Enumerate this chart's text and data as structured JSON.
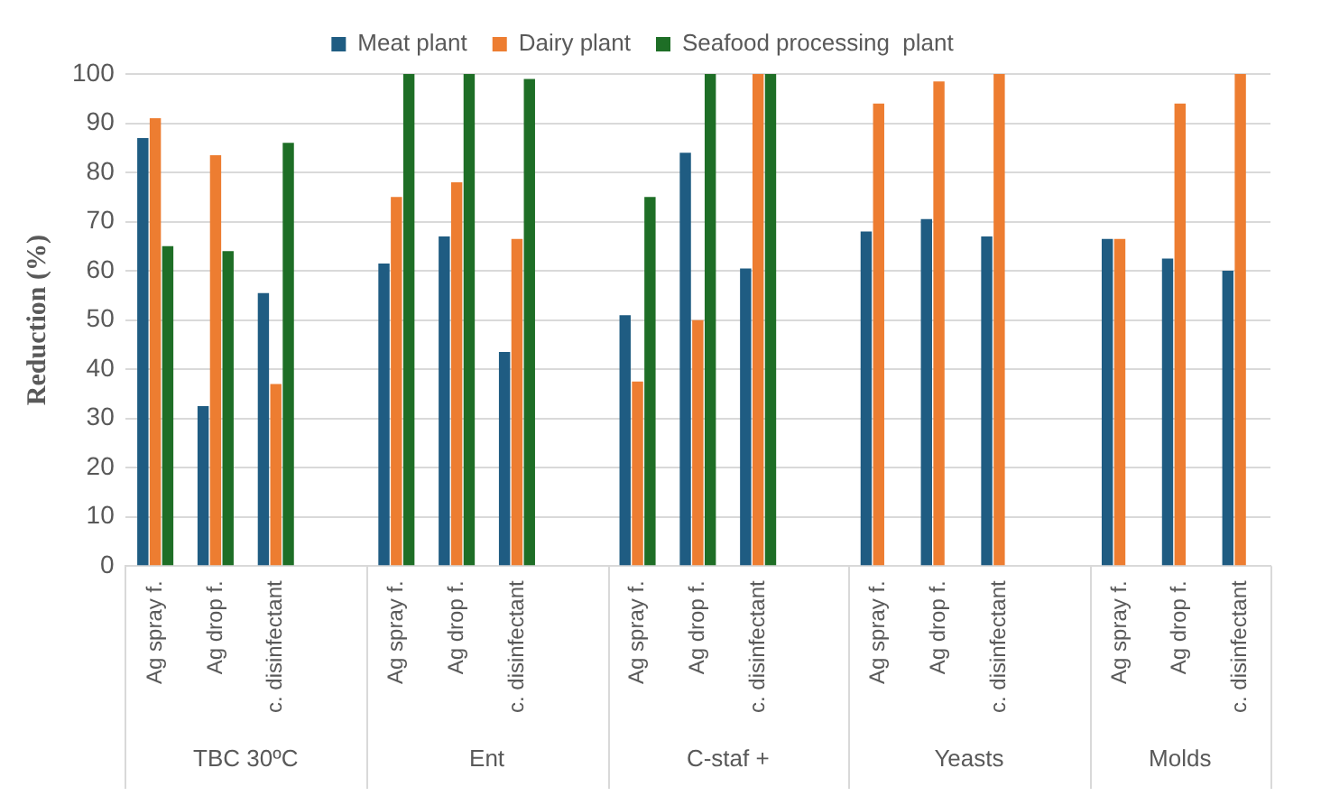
{
  "chart_data": {
    "type": "bar",
    "ylabel": "Reduction (%)",
    "categories": [
      "Ag spray f.",
      "Ag drop f.",
      "c. disinfectant",
      null,
      "Ag spray f.",
      "Ag drop f.",
      "c. disinfectant",
      null,
      "Ag spray f.",
      "Ag drop f.",
      "c. disinfectant",
      null,
      "Ag spray f.",
      "Ag drop f.",
      "c. disinfectant",
      null,
      "Ag spray f.",
      "Ag drop f.",
      "c. disinfectant"
    ],
    "series": [
      {
        "name": "Meat plant",
        "color": "#1f5c82",
        "values": [
          87,
          32.5,
          55.5,
          null,
          61.5,
          67,
          43.5,
          null,
          51,
          84,
          60.5,
          null,
          68,
          70.5,
          67,
          null,
          66.5,
          62.5,
          60
        ]
      },
      {
        "name": "Dairy plant",
        "color": "#ed7d31",
        "values": [
          91,
          83.5,
          37,
          null,
          75,
          78,
          66.5,
          null,
          37.5,
          50,
          100,
          null,
          94,
          98.5,
          100,
          null,
          66.5,
          94,
          100
        ]
      },
      {
        "name": "Seafood processing  plant",
        "color": "#1e6e26",
        "values": [
          65,
          64,
          86,
          null,
          100,
          100,
          99,
          null,
          75,
          100,
          100,
          null,
          null,
          null,
          null,
          null,
          null,
          null,
          null
        ]
      }
    ],
    "ylim": [
      0,
      100
    ],
    "yticks": [
      0,
      10,
      20,
      30,
      40,
      50,
      60,
      70,
      80,
      90,
      100
    ],
    "grid": "y",
    "legend": "top",
    "annotations": [
      "TBC 30ºC",
      "Ent",
      "C-staf +",
      "Yeasts",
      "Molds"
    ]
  }
}
